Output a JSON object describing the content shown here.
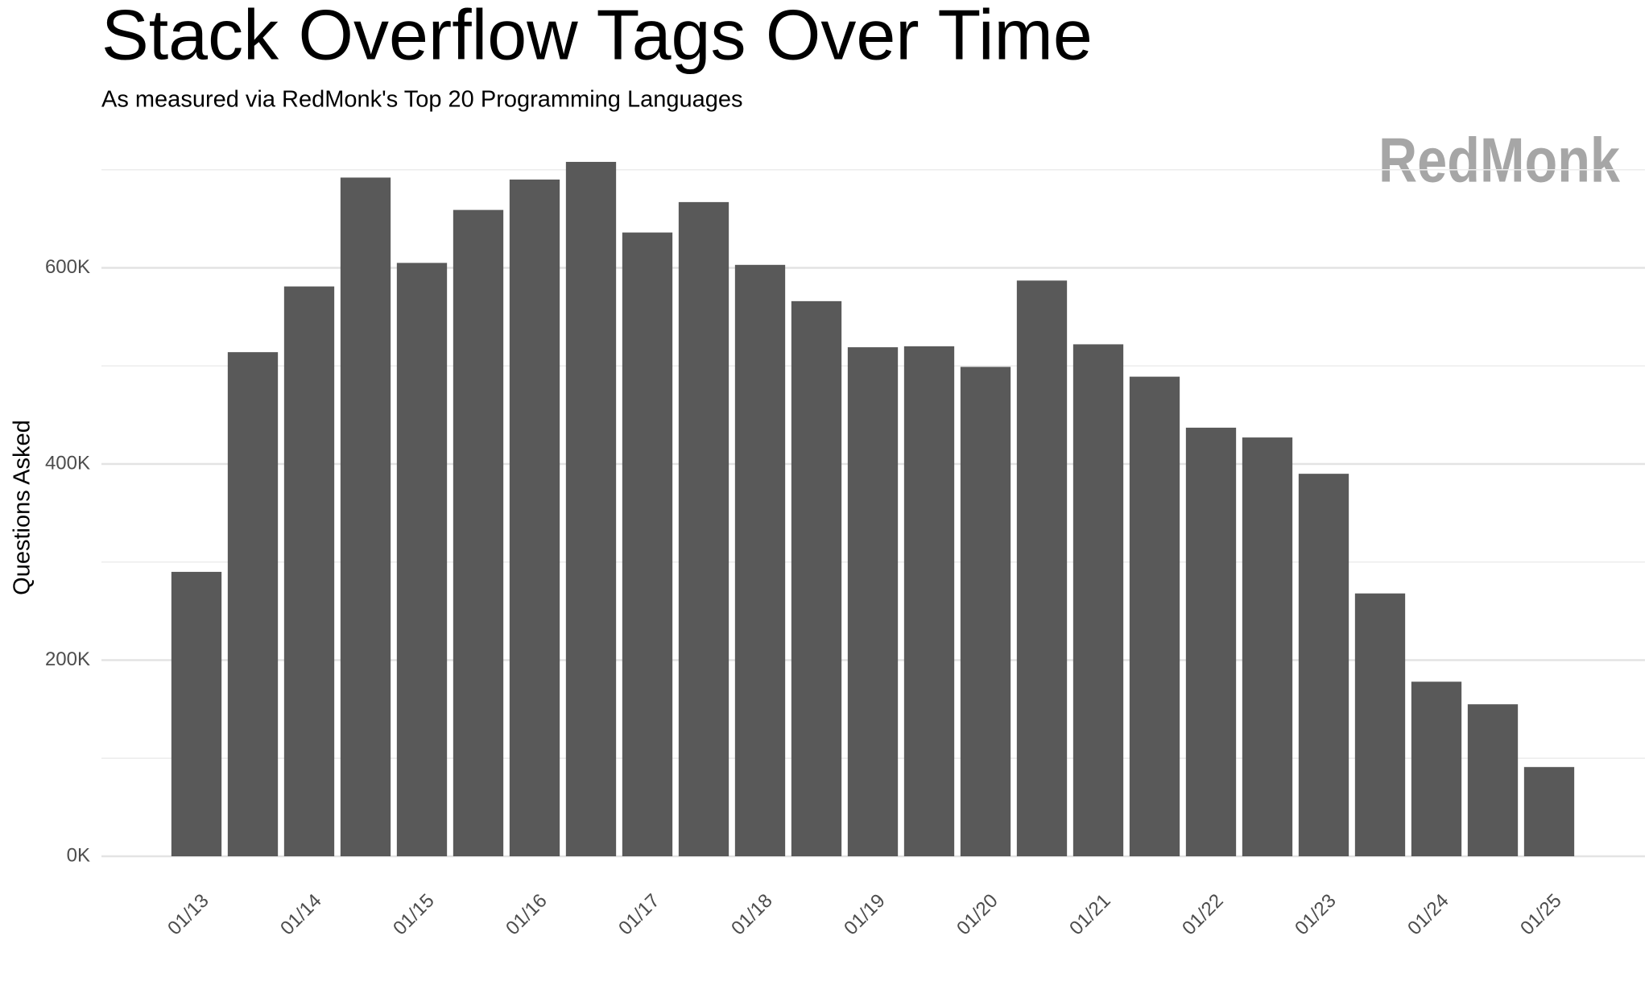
{
  "chart_data": {
    "type": "bar",
    "title": "Stack Overflow Tags Over Time",
    "subtitle": "As measured via RedMonk's Top 20 Programming Languages",
    "watermark": "RedMonk",
    "y_label": "Questions Asked",
    "categories": [
      "01/13",
      null,
      "01/14",
      null,
      "01/15",
      null,
      "01/16",
      null,
      "01/17",
      null,
      "01/18",
      null,
      "01/19",
      null,
      "01/20",
      null,
      "01/21",
      null,
      "01/22",
      null,
      "01/23",
      null,
      "01/24",
      null,
      "01/25"
    ],
    "values": [
      290000,
      514000,
      581000,
      692000,
      605000,
      659000,
      690000,
      708000,
      636000,
      667000,
      603000,
      566000,
      519000,
      520000,
      499000,
      587000,
      522000,
      489000,
      437000,
      427000,
      390000,
      268000,
      178000,
      155000,
      91000
    ],
    "color": "#595959",
    "ylim": [
      0,
      740000
    ],
    "yticks": [
      {
        "value": 0,
        "label": "0K"
      },
      {
        "value": 200000,
        "label": "200K"
      },
      {
        "value": 400000,
        "label": "400K"
      },
      {
        "value": 600000,
        "label": "600K"
      }
    ],
    "minor_yticks": [
      100000,
      300000,
      500000,
      700000
    ],
    "grid": true
  }
}
